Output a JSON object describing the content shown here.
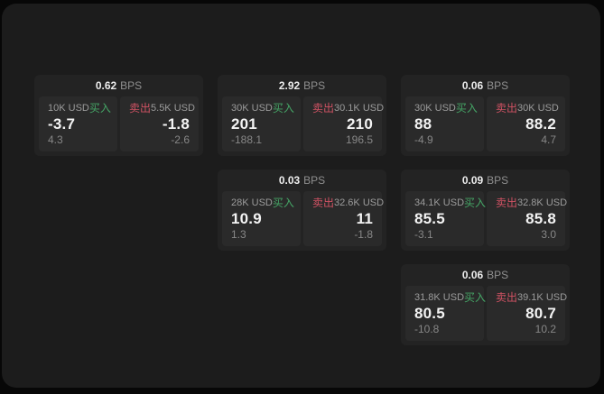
{
  "labels": {
    "buy": "买入",
    "sell": "卖出",
    "bps_unit": "BPS"
  },
  "colors": {
    "surface": "#1c1c1c",
    "card": "#232323",
    "panel": "#2a2a2a",
    "buy_accent": "#45a566",
    "sell_accent": "#cf5263",
    "value_text": "#f3f3f3",
    "muted_text": "#9b9b9b"
  },
  "cards": [
    {
      "bps": "0.62",
      "buy": {
        "amount": "10K USD",
        "value": "-3.7",
        "sub": "4.3"
      },
      "sell": {
        "amount": "5.5K USD",
        "value": "-1.8",
        "sub": "-2.6"
      }
    },
    {
      "bps": "2.92",
      "buy": {
        "amount": "30K USD",
        "value": "201",
        "sub": "-188.1"
      },
      "sell": {
        "amount": "30.1K USD",
        "value": "210",
        "sub": "196.5"
      }
    },
    {
      "bps": "0.06",
      "buy": {
        "amount": "30K USD",
        "value": "88",
        "sub": "-4.9"
      },
      "sell": {
        "amount": "30K USD",
        "value": "88.2",
        "sub": "4.7"
      }
    },
    {
      "bps": "0.03",
      "buy": {
        "amount": "28K USD",
        "value": "10.9",
        "sub": "1.3"
      },
      "sell": {
        "amount": "32.6K USD",
        "value": "11",
        "sub": "-1.8"
      }
    },
    {
      "bps": "0.09",
      "buy": {
        "amount": "34.1K USD",
        "value": "85.5",
        "sub": "-3.1"
      },
      "sell": {
        "amount": "32.8K USD",
        "value": "85.8",
        "sub": "3.0"
      }
    },
    {
      "bps": "0.06",
      "buy": {
        "amount": "31.8K USD",
        "value": "80.5",
        "sub": "-10.8"
      },
      "sell": {
        "amount": "39.1K USD",
        "value": "80.7",
        "sub": "10.2"
      }
    }
  ]
}
